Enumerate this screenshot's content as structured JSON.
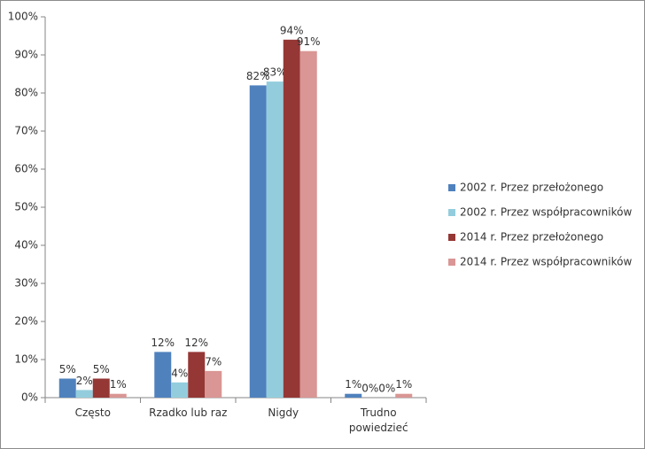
{
  "chart_data": {
    "type": "bar",
    "categories": [
      "Często",
      "Rzadko lub raz",
      "Nigdy",
      "Trudno powiedzieć"
    ],
    "series": [
      {
        "name": "2002 r. Przez przełożonego",
        "color": "#4f81bd",
        "values": [
          5,
          12,
          82,
          1
        ],
        "value_labels": [
          "5%",
          "12%",
          "82%",
          "1%"
        ]
      },
      {
        "name": "2002 r. Przez współpracowników",
        "color": "#93cddd",
        "values": [
          2,
          4,
          83,
          0
        ],
        "value_labels": [
          "2%",
          "4%",
          "83%",
          "0%"
        ]
      },
      {
        "name": "2014 r. Przez przełożonego",
        "color": "#953735",
        "values": [
          5,
          12,
          94,
          0
        ],
        "value_labels": [
          "5%",
          "12%",
          "94%",
          "0%"
        ]
      },
      {
        "name": "2014 r. Przez współpracowników",
        "color": "#d99694",
        "values": [
          1,
          7,
          91,
          1
        ],
        "value_labels": [
          "1%",
          "7%",
          "91%",
          "1%"
        ]
      }
    ],
    "ylim": [
      0,
      100
    ],
    "yticks": [
      {
        "value": 0,
        "label": "0%"
      },
      {
        "value": 10,
        "label": "10%"
      },
      {
        "value": 20,
        "label": "20%"
      },
      {
        "value": 30,
        "label": "30%"
      },
      {
        "value": 40,
        "label": "40%"
      },
      {
        "value": 50,
        "label": "50%"
      },
      {
        "value": 60,
        "label": "60%"
      },
      {
        "value": 70,
        "label": "70%"
      },
      {
        "value": 80,
        "label": "80%"
      },
      {
        "value": 90,
        "label": "90%"
      },
      {
        "value": 100,
        "label": "100%"
      }
    ],
    "grid": false,
    "legend": "right"
  }
}
